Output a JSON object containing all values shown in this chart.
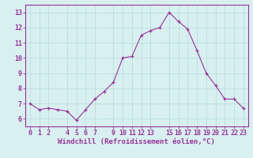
{
  "xlabel": "Windchill (Refroidissement éolien,°C)",
  "x": [
    0,
    1,
    2,
    3,
    4,
    5,
    6,
    7,
    8,
    9,
    10,
    11,
    12,
    13,
    14,
    15,
    16,
    17,
    18,
    19,
    20,
    21,
    22,
    23
  ],
  "y": [
    7.0,
    6.6,
    6.7,
    6.6,
    6.5,
    5.9,
    6.6,
    7.3,
    7.8,
    8.4,
    10.0,
    10.1,
    11.5,
    11.8,
    12.0,
    13.0,
    12.4,
    11.9,
    10.5,
    9.0,
    8.2,
    7.3,
    7.3,
    6.7
  ],
  "xtick_positions": [
    0,
    1,
    2,
    4,
    5,
    6,
    7,
    9,
    10,
    11,
    12,
    13,
    15,
    16,
    17,
    18,
    19,
    20,
    21,
    22,
    23
  ],
  "xtick_labels": [
    "0",
    "1",
    "2",
    "4",
    "5",
    "6",
    "7",
    "9",
    "10",
    "11",
    "12",
    "13",
    "15",
    "16",
    "17",
    "18",
    "19",
    "20",
    "21",
    "22",
    "23"
  ],
  "ytick_vals": [
    6,
    7,
    8,
    9,
    10,
    11,
    12,
    13
  ],
  "ytick_labels": [
    "6",
    "7",
    "8",
    "9",
    "10",
    "11",
    "12",
    "13"
  ],
  "ylim": [
    5.5,
    13.5
  ],
  "xlim": [
    -0.5,
    23.5
  ],
  "line_color": "#993399",
  "marker_color": "#993399",
  "bg_color": "#d8f0f0",
  "grid_color": "#b8dede",
  "label_color": "#993399",
  "font_size": 6.0,
  "xlabel_font_size": 6.5
}
